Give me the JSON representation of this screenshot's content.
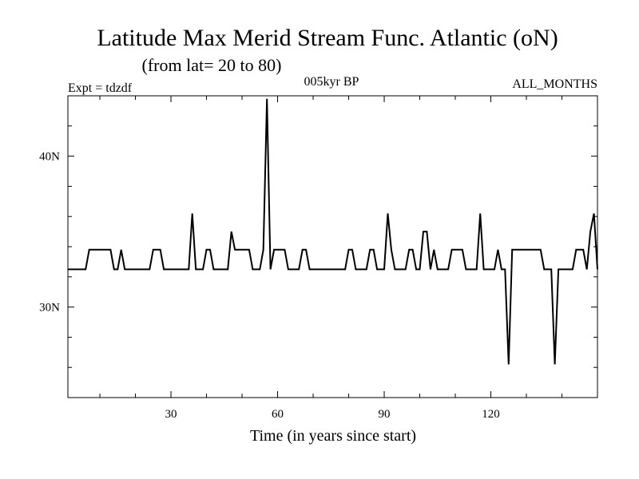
{
  "chart_data": {
    "type": "line",
    "title": "Latitude Max Merid Stream Func. Atlantic (oN)",
    "subtitle": "(from lat= 20 to 80)",
    "experiment_label": "Expt = tdzdf",
    "period_label": "005kyr BP",
    "months_label": "ALL_MONTHS",
    "xlabel": "Time (in years since start)",
    "ylabel": "",
    "xlim": [
      1,
      150
    ],
    "ylim": [
      24,
      44
    ],
    "x_ticks": [
      30,
      60,
      90,
      120
    ],
    "x_tick_labels": [
      "30",
      "60",
      "90",
      "120"
    ],
    "y_ticks": [
      30,
      40
    ],
    "y_tick_labels": [
      "30N",
      "40N"
    ],
    "grid": false,
    "line_color": "#000000",
    "series": [
      {
        "x": [
          1,
          2,
          3,
          4,
          5,
          6,
          7,
          8,
          9,
          10,
          11,
          12,
          13,
          14,
          15,
          16,
          17,
          18,
          19,
          20,
          21,
          22,
          23,
          24,
          25,
          26,
          27,
          28,
          29,
          30,
          31,
          32,
          33,
          34,
          35,
          36,
          37,
          38,
          39,
          40,
          41,
          42,
          43,
          44,
          45,
          46,
          47,
          48,
          49,
          50,
          51,
          52,
          53,
          54,
          55,
          56,
          57,
          58,
          59,
          60,
          61,
          62,
          63,
          64,
          65,
          66,
          67,
          68,
          69,
          70,
          71,
          72,
          73,
          74,
          75,
          76,
          77,
          78,
          79,
          80,
          81,
          82,
          83,
          84,
          85,
          86,
          87,
          88,
          89,
          90,
          91,
          92,
          93,
          94,
          95,
          96,
          97,
          98,
          99,
          100,
          101,
          102,
          103,
          104,
          105,
          106,
          107,
          108,
          109,
          110,
          111,
          112,
          113,
          114,
          115,
          116,
          117,
          118,
          119,
          120,
          121,
          122,
          123,
          124,
          125,
          126,
          127,
          128,
          129,
          130,
          131,
          132,
          133,
          134,
          135,
          136,
          137,
          138,
          139,
          140,
          141,
          142,
          143,
          144,
          145,
          146,
          147,
          148,
          149,
          150
        ],
        "y": [
          32.5,
          32.5,
          32.5,
          32.5,
          32.5,
          32.5,
          33.8,
          33.8,
          33.8,
          33.8,
          33.8,
          33.8,
          33.8,
          32.5,
          32.5,
          33.8,
          32.5,
          32.5,
          32.5,
          32.5,
          32.5,
          32.5,
          32.5,
          32.5,
          33.8,
          33.8,
          33.8,
          32.5,
          32.5,
          32.5,
          32.5,
          32.5,
          32.5,
          32.5,
          32.5,
          36.2,
          32.5,
          32.5,
          32.5,
          33.8,
          33.8,
          32.5,
          32.5,
          32.5,
          32.5,
          32.5,
          35.0,
          33.8,
          33.8,
          33.8,
          33.8,
          33.8,
          32.5,
          32.5,
          32.5,
          33.8,
          43.8,
          32.5,
          33.8,
          33.8,
          33.8,
          33.8,
          32.5,
          32.5,
          32.5,
          32.5,
          33.8,
          33.8,
          32.5,
          32.5,
          32.5,
          32.5,
          32.5,
          32.5,
          32.5,
          32.5,
          32.5,
          32.5,
          32.5,
          33.8,
          33.8,
          32.5,
          32.5,
          32.5,
          32.5,
          33.8,
          33.8,
          32.5,
          32.5,
          32.5,
          36.2,
          33.8,
          32.5,
          32.5,
          32.5,
          32.5,
          33.8,
          33.8,
          32.5,
          32.5,
          35.0,
          35.0,
          32.5,
          33.8,
          32.5,
          32.5,
          32.5,
          32.5,
          33.8,
          33.8,
          33.8,
          33.8,
          32.5,
          32.5,
          32.5,
          32.5,
          36.2,
          32.5,
          32.5,
          32.5,
          32.5,
          33.8,
          32.5,
          32.5,
          26.2,
          33.8,
          33.8,
          33.8,
          33.8,
          33.8,
          33.8,
          33.8,
          33.8,
          33.8,
          32.5,
          32.5,
          32.5,
          26.2,
          32.5,
          32.5,
          32.5,
          32.5,
          32.5,
          33.8,
          33.8,
          33.8,
          32.5,
          35.0,
          36.2,
          32.5
        ]
      }
    ]
  }
}
